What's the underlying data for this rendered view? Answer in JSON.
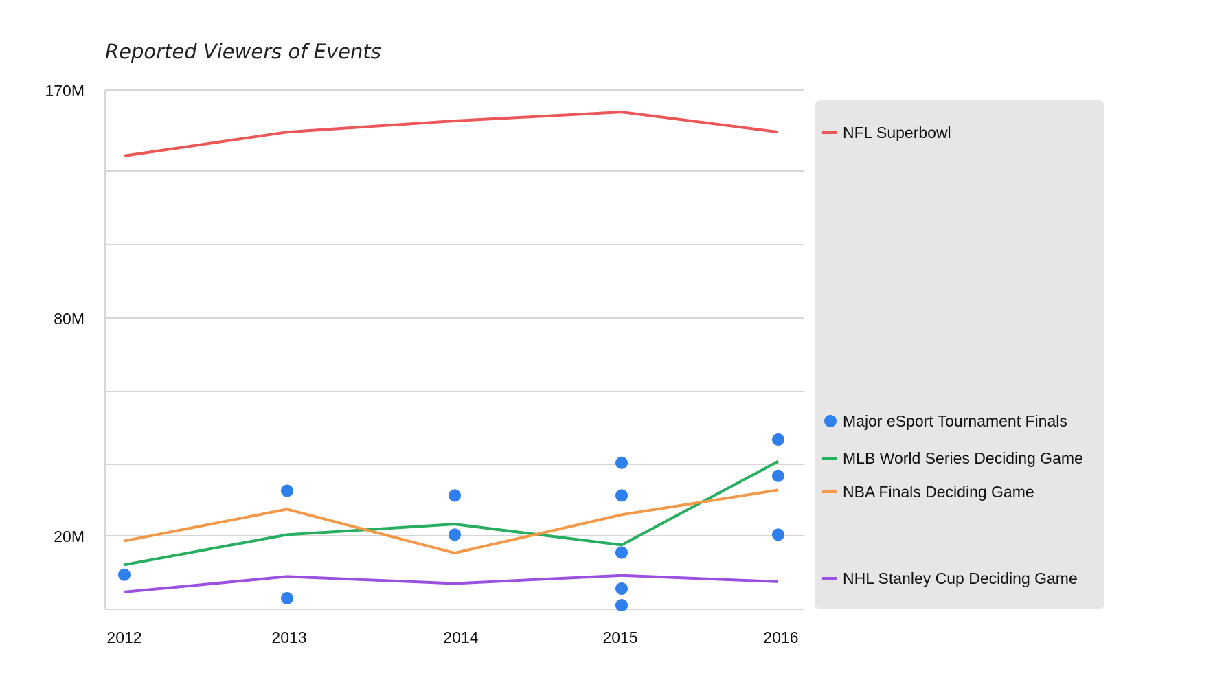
{
  "chart_data": {
    "type": "line",
    "title": "Reported Viewers of Events",
    "xlabel": "",
    "ylabel": "",
    "categories": [
      "2012",
      "2013",
      "2014",
      "2015",
      "2016"
    ],
    "y_ticks": [
      {
        "value": 170,
        "label": "170M"
      },
      {
        "value": 80,
        "label": "80M"
      },
      {
        "value": 20,
        "label": "20M"
      }
    ],
    "ylim": [
      0,
      170
    ],
    "grid": true,
    "legend_position": "right",
    "series": [
      {
        "name": "NFL Superbowl",
        "kind": "line",
        "color": "#EB5757",
        "values": [
          144,
          153.4,
          157.8,
          161.3,
          153.4
        ]
      },
      {
        "name": "Major eSport Tournament Finals",
        "kind": "scatter",
        "color": "#2F80ED",
        "points": [
          {
            "x": "2012",
            "y": 9.4
          },
          {
            "x": "2013",
            "y": 32.4
          },
          {
            "x": "2013",
            "y": 3.0
          },
          {
            "x": "2014",
            "y": 31.1
          },
          {
            "x": "2014",
            "y": 20.3
          },
          {
            "x": "2015",
            "y": 40.1
          },
          {
            "x": "2015",
            "y": 31.1
          },
          {
            "x": "2015",
            "y": 15.4
          },
          {
            "x": "2015",
            "y": 5.6
          },
          {
            "x": "2015",
            "y": 1.1
          },
          {
            "x": "2016",
            "y": 46.5
          },
          {
            "x": "2016",
            "y": 36.5
          },
          {
            "x": "2016",
            "y": 20.3
          }
        ]
      },
      {
        "name": "MLB World Series Deciding Game",
        "kind": "line",
        "color": "#27AE60",
        "values": [
          12.1,
          20.3,
          23.2,
          17.5,
          40.5
        ]
      },
      {
        "name": "NBA Finals Deciding Game",
        "kind": "line",
        "color": "#F2994A",
        "values": [
          18.6,
          27.3,
          15.3,
          25.8,
          32.6
        ]
      },
      {
        "name": "NHL Stanley Cup Deciding Game",
        "kind": "line",
        "color": "#9B51E0",
        "values": [
          4.7,
          8.9,
          7.0,
          9.2,
          7.5
        ]
      }
    ]
  },
  "colors": {
    "grid": "#D6D6D6",
    "legend_background": "#E6E6E6"
  }
}
